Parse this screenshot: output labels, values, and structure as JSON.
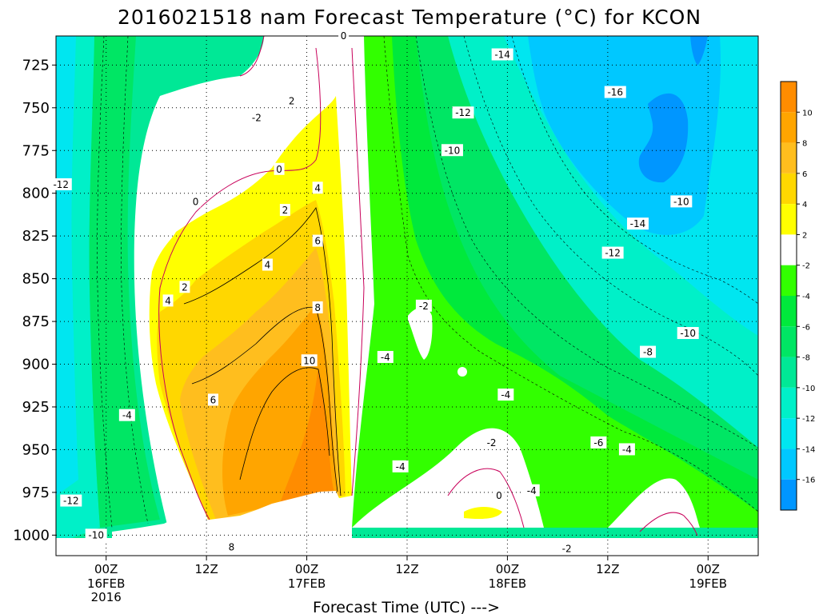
{
  "chart_data": {
    "type": "heatmap",
    "title": "2016021518 nam Forecast Temperature (°C) for KCON",
    "xlabel": "Forecast Time (UTC) --->",
    "ylabel": "",
    "y_ticks": [
      "725",
      "750",
      "775",
      "800",
      "825",
      "850",
      "875",
      "900",
      "925",
      "950",
      "975",
      "1000"
    ],
    "y_values": [
      725,
      750,
      775,
      800,
      825,
      850,
      875,
      900,
      925,
      950,
      975,
      1000
    ],
    "ylim": [
      708,
      1012
    ],
    "y_scale": "pressure (inverted)",
    "x_ticks": [
      {
        "label": "00Z",
        "sub1": "16FEB",
        "sub2": "2016",
        "hour": 6
      },
      {
        "label": "12Z",
        "sub1": "",
        "sub2": "",
        "hour": 18
      },
      {
        "label": "00Z",
        "sub1": "17FEB",
        "sub2": "",
        "hour": 30
      },
      {
        "label": "12Z",
        "sub1": "",
        "sub2": "",
        "hour": 42
      },
      {
        "label": "00Z",
        "sub1": "18FEB",
        "sub2": "",
        "hour": 54
      },
      {
        "label": "12Z",
        "sub1": "",
        "sub2": "",
        "hour": 66
      },
      {
        "label": "00Z",
        "sub1": "19FEB",
        "sub2": "",
        "hour": 78
      }
    ],
    "xlim": [
      0,
      84
    ],
    "grid": true,
    "colorbar": {
      "position": "right",
      "labels": [
        "10",
        "8",
        "6",
        "4",
        "2",
        "-2",
        "-4",
        "-6",
        "-8",
        "-10",
        "-12",
        "-14",
        "-16"
      ],
      "bins": [
        {
          "lo": 10,
          "hi": 12,
          "color": "#ff8c00"
        },
        {
          "lo": 8,
          "hi": 10,
          "color": "#ffa500"
        },
        {
          "lo": 6,
          "hi": 8,
          "color": "#ffbe1e"
        },
        {
          "lo": 4,
          "hi": 6,
          "color": "#ffd700"
        },
        {
          "lo": 2,
          "hi": 4,
          "color": "#ffff00"
        },
        {
          "lo": -2,
          "hi": 2,
          "color": "#ffffff"
        },
        {
          "lo": -4,
          "hi": -2,
          "color": "#32ff00"
        },
        {
          "lo": -6,
          "hi": -4,
          "color": "#00e93c"
        },
        {
          "lo": -8,
          "hi": -6,
          "color": "#00e664"
        },
        {
          "lo": -10,
          "hi": -8,
          "color": "#00e896"
        },
        {
          "lo": -12,
          "hi": -10,
          "color": "#00f0c8"
        },
        {
          "lo": -14,
          "hi": -12,
          "color": "#00e6f0"
        },
        {
          "lo": -16,
          "hi": -14,
          "color": "#00c8ff"
        },
        {
          "lo": -18,
          "hi": -16,
          "color": "#0096ff"
        }
      ]
    },
    "contour_labels": [
      {
        "text": "-14",
        "hour": 53.4,
        "p": 719
      },
      {
        "text": "-16",
        "hour": 66.9,
        "p": 741
      },
      {
        "text": "-12",
        "hour": 48.7,
        "p": 753
      },
      {
        "text": "-10",
        "hour": 47.4,
        "p": 775
      },
      {
        "text": "-12",
        "hour": 0.6,
        "p": 795
      },
      {
        "text": "-14",
        "hour": 69.6,
        "p": 818
      },
      {
        "text": "-10",
        "hour": 74.8,
        "p": 805
      },
      {
        "text": "-12",
        "hour": 66.6,
        "p": 835
      },
      {
        "text": "-2",
        "hour": 24,
        "p": 756
      },
      {
        "text": "2",
        "hour": 28.2,
        "p": 746
      },
      {
        "text": "0",
        "hour": 34.4,
        "p": 708
      },
      {
        "text": "0",
        "hour": 26.7,
        "p": 786
      },
      {
        "text": "0",
        "hour": 16.7,
        "p": 805
      },
      {
        "text": "4",
        "hour": 31.3,
        "p": 797
      },
      {
        "text": "2",
        "hour": 27.4,
        "p": 810
      },
      {
        "text": "6",
        "hour": 31.3,
        "p": 828
      },
      {
        "text": "4",
        "hour": 25.3,
        "p": 842
      },
      {
        "text": "2",
        "hour": 15.4,
        "p": 855
      },
      {
        "text": "4",
        "hour": 13.4,
        "p": 863
      },
      {
        "text": "8",
        "hour": 31.3,
        "p": 867
      },
      {
        "text": "-2",
        "hour": 44,
        "p": 866
      },
      {
        "text": "-4",
        "hour": 39.4,
        "p": 896
      },
      {
        "text": "6",
        "hour": 18.8,
        "p": 921
      },
      {
        "text": "10",
        "hour": 30.3,
        "p": 898
      },
      {
        "text": "-4",
        "hour": 8.5,
        "p": 930
      },
      {
        "text": "-4",
        "hour": 53.8,
        "p": 918
      },
      {
        "text": "-8",
        "hour": 70.8,
        "p": 893
      },
      {
        "text": "-10",
        "hour": 75.6,
        "p": 882
      },
      {
        "text": "-2",
        "hour": 52.1,
        "p": 946
      },
      {
        "text": "-6",
        "hour": 64.9,
        "p": 946
      },
      {
        "text": "-4",
        "hour": 68.3,
        "p": 950
      },
      {
        "text": "-4",
        "hour": 41.2,
        "p": 960
      },
      {
        "text": "0",
        "hour": 53,
        "p": 977
      },
      {
        "text": "-4",
        "hour": 56.9,
        "p": 974
      },
      {
        "text": "-12",
        "hour": 1.8,
        "p": 980
      },
      {
        "text": "8",
        "hour": 21,
        "p": 1007
      },
      {
        "text": "-10",
        "hour": 4.8,
        "p": 1000
      },
      {
        "text": "-2",
        "hour": 61.1,
        "p": 1008
      }
    ]
  }
}
